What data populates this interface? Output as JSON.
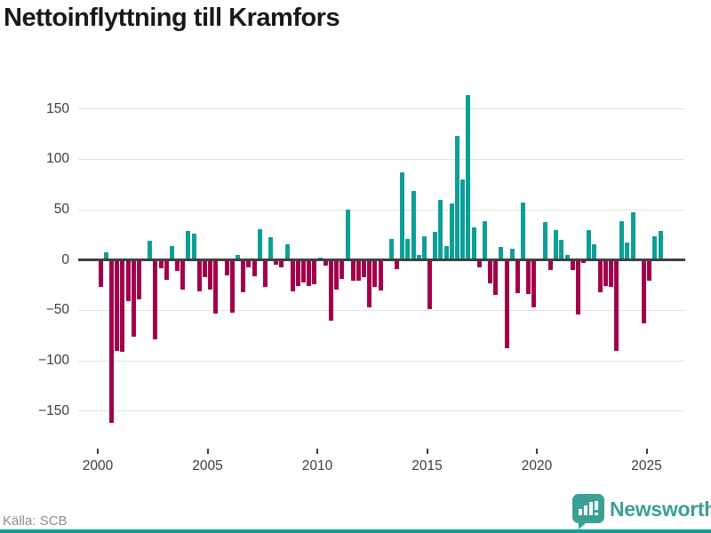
{
  "title": "Nettoinflyttning till Kramfors",
  "source": "Källa: SCB",
  "logo": {
    "text": "Newsworthy"
  },
  "colors": {
    "positive": "#0d9f97",
    "negative": "#a2004a",
    "grid": "#e3e3e3",
    "zero_line": "#404040",
    "axis_text": "#3d3d3d",
    "title_text": "#191919",
    "source_text": "#8e8e8e",
    "logo": "#3ba094",
    "bottom_strip": "#0d9f97"
  },
  "chart_data": {
    "type": "bar",
    "title": "Nettoinflyttning till Kramfors",
    "x_start": "2000-Q1",
    "x_end": "2025-Q3",
    "x_tick_labels": [
      "2000",
      "2005",
      "2010",
      "2015",
      "2020",
      "2025"
    ],
    "y_ticks": [
      150,
      100,
      50,
      0,
      -50,
      -100,
      -150
    ],
    "y_tick_labels": [
      "150",
      "100",
      "50",
      "0",
      "−50",
      "−100",
      "−150"
    ],
    "ylim": [
      -175,
      175
    ],
    "grid": "horizontal",
    "legend": "none",
    "values": [
      -27,
      8,
      -162,
      -90,
      -91,
      -41,
      -76,
      -39,
      0,
      19,
      -79,
      -8,
      -20,
      14,
      -11,
      -29,
      29,
      26,
      -31,
      -17,
      -29,
      -53,
      0,
      -15,
      -52,
      5,
      -32,
      -7,
      -16,
      31,
      -27,
      23,
      -5,
      -7,
      16,
      -31,
      -26,
      -22,
      -26,
      -24,
      2,
      -6,
      -60,
      -29,
      -19,
      50,
      -21,
      -21,
      -17,
      -47,
      -27,
      -30,
      0,
      21,
      -9,
      87,
      21,
      69,
      5,
      24,
      -49,
      28,
      60,
      14,
      56,
      123,
      80,
      164,
      32,
      -7,
      39,
      -23,
      -35,
      13,
      -88,
      11,
      -33,
      57,
      -34,
      -47,
      0,
      38,
      -10,
      30,
      20,
      5,
      -10,
      -54,
      -3,
      30,
      16,
      -32,
      -26,
      -27,
      -90,
      39,
      17,
      47,
      0,
      -63,
      -21,
      24,
      29
    ]
  }
}
